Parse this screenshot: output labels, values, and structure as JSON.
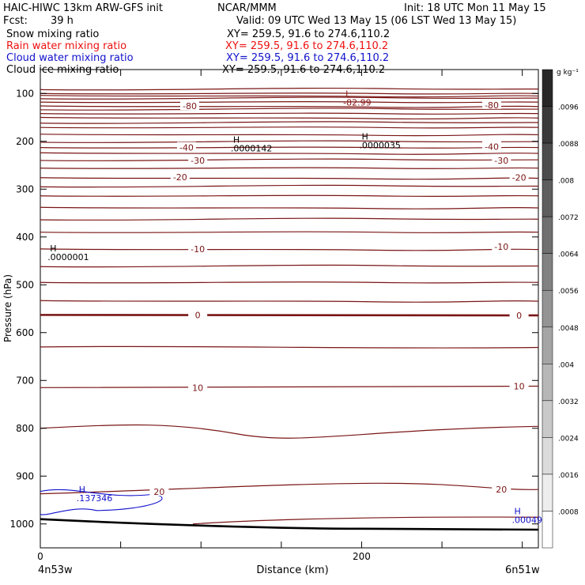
{
  "header": {
    "model": "HAIC-HIWC 13km ARW-GFS init",
    "org": "NCAR/MMM",
    "init": "Init: 18 UTC Mon 11 May 15",
    "fcst_label": "Fcst:",
    "fcst_value": "39 h",
    "valid": "Valid: 09 UTC Wed 13 May 15 (06 LST Wed 13 May 15)"
  },
  "fields": [
    {
      "name": "Snow mixing ratio",
      "xy": "XY= 259.5, 91.6 to 274.6,110.2",
      "color": "#000000"
    },
    {
      "name": "Rain water mixing ratio",
      "xy": "XY= 259.5, 91.6 to 274.6,110.2",
      "color": "#ee1111"
    },
    {
      "name": "Cloud water mixing ratio",
      "xy": "XY= 259.5, 91.6 to 274.6,110.2",
      "color": "#1111cc"
    },
    {
      "name": "Cloud ice mixing ratio",
      "xy": "XY= 259.5, 91.6 to 274.6,110.2",
      "color": "#000000"
    }
  ],
  "colorbar": {
    "unit": "g kg⁻¹",
    "ticks": [
      ".0096",
      ".0088",
      ".008",
      ".0072",
      ".0064",
      ".0056",
      ".0048",
      ".004",
      ".0032",
      ".0024",
      ".0016",
      ".0008"
    ]
  },
  "chart_data": {
    "type": "cross-section contour",
    "ylabel": "Pressure (hPa)",
    "xlabel": "Distance (km)",
    "y_ticks": [
      100,
      200,
      300,
      400,
      500,
      600,
      700,
      800,
      900,
      1000
    ],
    "x_ticks": [
      0,
      200
    ],
    "ylim": [
      1050,
      50
    ],
    "xlim": [
      0,
      310
    ],
    "x_endpoints": {
      "left": "4n53w",
      "right": "6n51w"
    },
    "temperature_contour_labels": [
      {
        "text": "-80",
        "x": 93,
        "p": 126
      },
      {
        "text": "-80",
        "x": 281,
        "p": 124
      },
      {
        "text": "-40",
        "x": 91,
        "p": 213
      },
      {
        "text": "-40",
        "x": 281,
        "p": 211
      },
      {
        "text": "-30",
        "x": 98,
        "p": 240
      },
      {
        "text": "-30",
        "x": 287,
        "p": 240
      },
      {
        "text": "-20",
        "x": 87,
        "p": 275
      },
      {
        "text": "-20",
        "x": 298,
        "p": 276
      },
      {
        "text": "-10",
        "x": 98,
        "p": 425
      },
      {
        "text": "-10",
        "x": 287,
        "p": 420
      },
      {
        "text": "0",
        "x": 98,
        "p": 563
      },
      {
        "text": "0",
        "x": 298,
        "p": 564
      },
      {
        "text": "10",
        "x": 98,
        "p": 715
      },
      {
        "text": "10",
        "x": 298,
        "p": 712
      },
      {
        "text": "20",
        "x": 74,
        "p": 933
      },
      {
        "text": "20",
        "x": 287,
        "p": 928
      }
    ],
    "extrema": [
      {
        "kind": "L",
        "value": "-82.99",
        "x": 190,
        "p": 107,
        "color": "#8b1a1a"
      },
      {
        "kind": "H",
        "value": ".0000142",
        "x": 120,
        "p": 203,
        "color": "#000000"
      },
      {
        "kind": "H",
        "value": ".0000035",
        "x": 200,
        "p": 196,
        "color": "#000000"
      },
      {
        "kind": "H",
        "value": ".0000001",
        "x": 6,
        "p": 430,
        "color": "#000000"
      },
      {
        "kind": "H",
        "value": ".137346",
        "x": 24,
        "p": 934,
        "color": "#1111cc"
      },
      {
        "kind": "H",
        "value": ".00049",
        "x": 295,
        "p": 980,
        "color": "#1111cc"
      }
    ]
  }
}
